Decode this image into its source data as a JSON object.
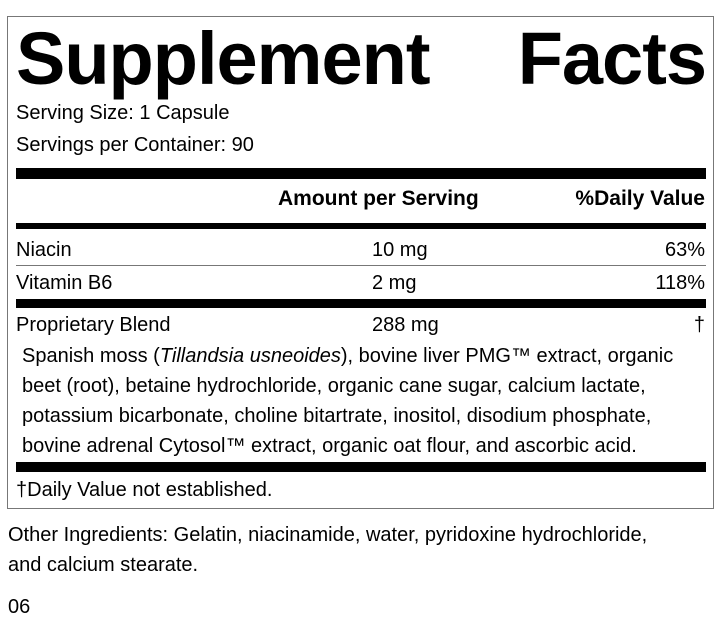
{
  "title_words": [
    "Supplement",
    "Facts"
  ],
  "serving_size": "Serving Size: 1 Capsule",
  "servings_per_container": "Servings per Container: 90",
  "header": {
    "amount": "Amount per Serving",
    "dv": "%Daily Value"
  },
  "rows": [
    {
      "name": "Niacin",
      "amount": "10 mg",
      "dv": "63%"
    },
    {
      "name": "Vitamin B6",
      "amount": "2 mg",
      "dv": "118%"
    },
    {
      "name": "Proprietary Blend",
      "amount": "288 mg",
      "dv": "†"
    }
  ],
  "blend": {
    "l1a": "Spanish moss (",
    "l1i": "Tillandsia usneoides",
    "l1b": "), bovine liver PMG™ extract, organic",
    "l2": "beet (root), betaine hydrochloride, organic cane sugar, calcium lactate,",
    "l3": "potassium bicarbonate, choline bitartrate, inositol, disodium phosphate,",
    "l4": "bovine adrenal Cytosol™ extract, organic oat flour, and ascorbic acid."
  },
  "footnote": "†Daily Value not established.",
  "other_ingredients": [
    "Other Ingredients: Gelatin, niacinamide, water, pyridoxine hydrochloride,",
    "and calcium stearate."
  ],
  "code": "06"
}
